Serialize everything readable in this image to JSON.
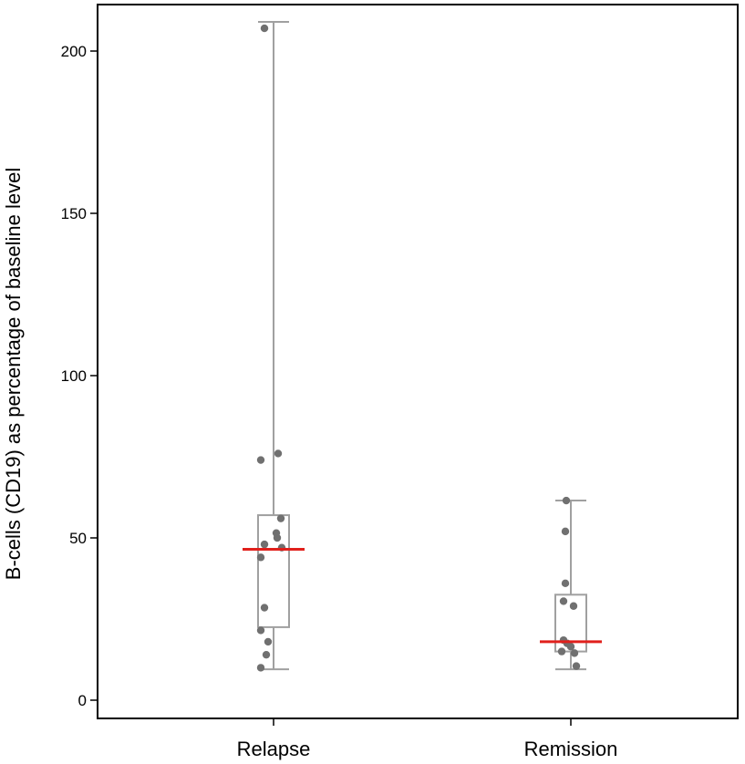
{
  "chart_data": {
    "type": "box",
    "title": "",
    "xlabel": "",
    "ylabel": "B-cells (CD19) as percentage of baseline level",
    "ylim": [
      -6,
      214
    ],
    "yticks": [
      0,
      50,
      100,
      150,
      200
    ],
    "grid": false,
    "legend": "none",
    "categories": [
      "Relapse",
      "Remission"
    ],
    "boxes": [
      {
        "category": "Relapse",
        "whisker_low": 9.5,
        "q1": 22.5,
        "median": 46.5,
        "q3": 57,
        "whisker_high": 209
      },
      {
        "category": "Remission",
        "whisker_low": 9.5,
        "q1": 15,
        "median": 18,
        "q3": 32.5,
        "whisker_high": 61.5
      }
    ],
    "points": [
      {
        "category": "Relapse",
        "values": [
          207,
          76,
          74,
          56,
          51.5,
          50,
          48,
          47,
          44,
          28.5,
          21.5,
          18,
          14,
          10
        ]
      },
      {
        "category": "Remission",
        "values": [
          61.5,
          52,
          36,
          30.5,
          29,
          18.5,
          17.5,
          16.5,
          15,
          14.5,
          10.5
        ]
      }
    ],
    "colors": {
      "box": "#a0a0a0",
      "median": "#e0201c",
      "points": "#707070",
      "axis": "#000000"
    }
  }
}
